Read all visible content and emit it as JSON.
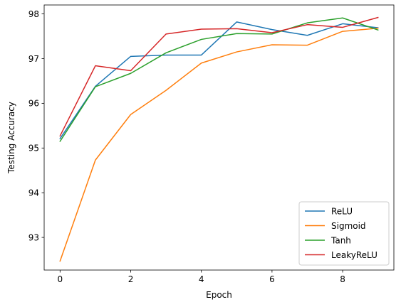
{
  "chart_data": {
    "type": "line",
    "title": "",
    "xlabel": "Epoch",
    "ylabel": "Testing Accuracy",
    "x": [
      0,
      1,
      2,
      3,
      4,
      5,
      6,
      7,
      8,
      9
    ],
    "xlim": [
      -0.45,
      9.45
    ],
    "ylim": [
      92.27,
      98.2
    ],
    "x_ticks": [
      0,
      2,
      4,
      6,
      8
    ],
    "y_ticks": [
      93,
      94,
      95,
      96,
      97,
      98
    ],
    "grid": false,
    "legend_position": "lower-right",
    "series": [
      {
        "name": "ReLU",
        "color": "#1f77b4",
        "values": [
          95.21,
          96.38,
          97.05,
          97.08,
          97.08,
          97.82,
          97.65,
          97.52,
          97.78,
          97.69
        ]
      },
      {
        "name": "Sigmoid",
        "color": "#ff7f0e",
        "values": [
          92.47,
          94.73,
          95.75,
          96.29,
          96.9,
          97.15,
          97.31,
          97.3,
          97.61,
          97.68
        ]
      },
      {
        "name": "Tanh",
        "color": "#2ca02c",
        "values": [
          95.15,
          96.37,
          96.67,
          97.13,
          97.43,
          97.56,
          97.55,
          97.8,
          97.91,
          97.64
        ]
      },
      {
        "name": "LeakyReLU",
        "color": "#d62728",
        "values": [
          95.27,
          96.84,
          96.73,
          97.55,
          97.66,
          97.67,
          97.58,
          97.76,
          97.7,
          97.92
        ]
      }
    ]
  }
}
